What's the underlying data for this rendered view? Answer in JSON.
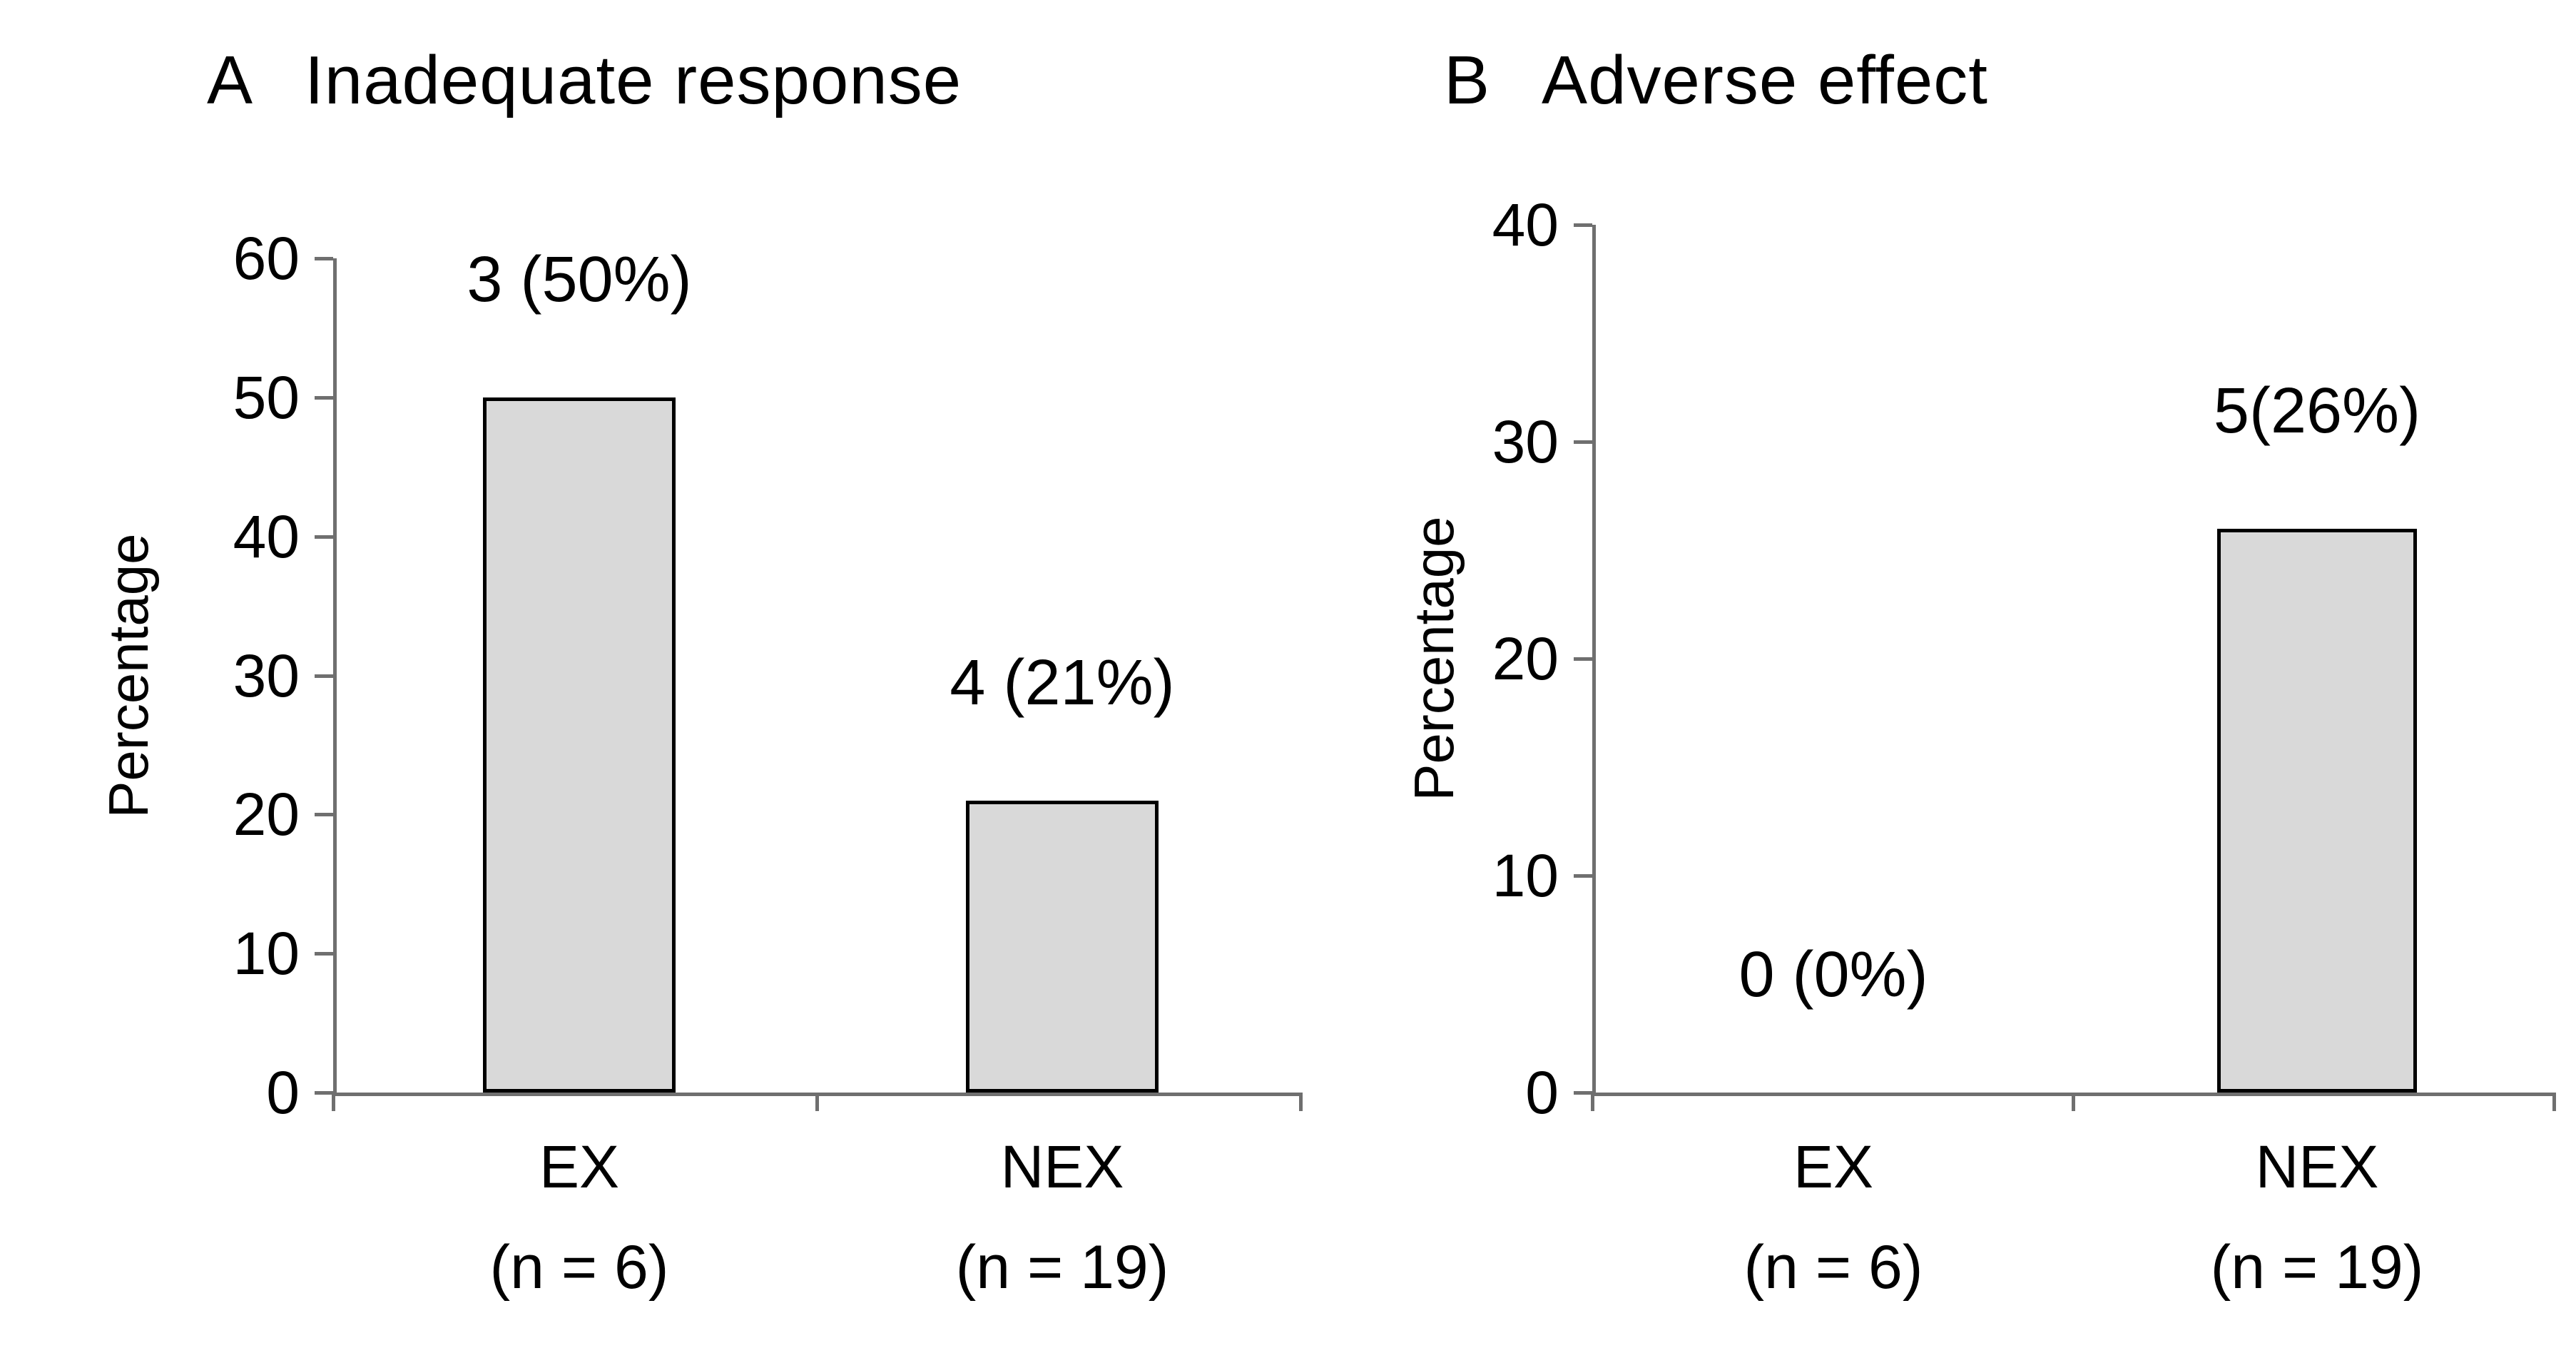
{
  "colors": {
    "background": "#ffffff",
    "bar_fill": "#d9d9d9",
    "bar_border": "#000000",
    "axis": "#6f6f6f",
    "text": "#000000"
  },
  "chart_data": [
    {
      "type": "bar",
      "panel_letter": "A",
      "title": "Inadequate response",
      "ylabel": "Percentage",
      "ylim": [
        0,
        60
      ],
      "yticks": [
        0,
        10,
        20,
        30,
        40,
        50,
        60
      ],
      "categories": [
        "EX",
        "NEX"
      ],
      "category_sublabels": [
        "(n = 6)",
        "(n = 19)"
      ],
      "values": [
        50,
        21
      ],
      "bar_labels": [
        "3 (50%)",
        "4 (21%)"
      ],
      "grid": false,
      "legend": "none"
    },
    {
      "type": "bar",
      "panel_letter": "B",
      "title": "Adverse effect",
      "ylabel": "Percentage",
      "ylim": [
        0,
        40
      ],
      "yticks": [
        0,
        10,
        20,
        30,
        40
      ],
      "categories": [
        "EX",
        "NEX"
      ],
      "category_sublabels": [
        "(n = 6)",
        "(n = 19)"
      ],
      "values": [
        0,
        26
      ],
      "bar_labels": [
        "0 (0%)",
        "5(26%)"
      ],
      "grid": false,
      "legend": "none"
    }
  ]
}
